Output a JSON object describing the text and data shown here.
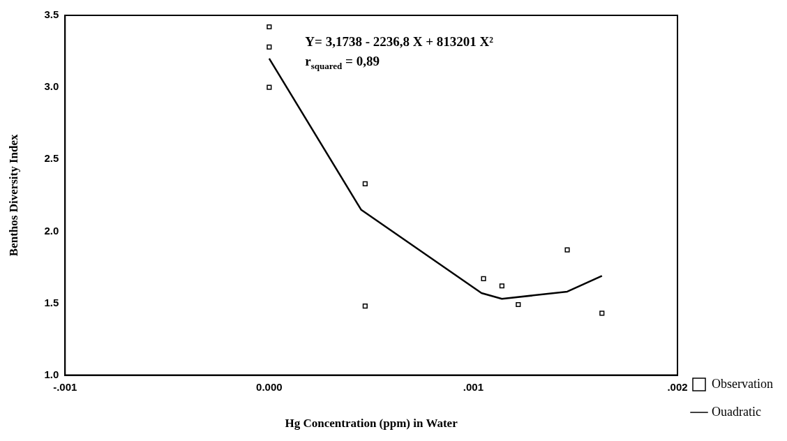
{
  "chart_data": {
    "type": "scatter",
    "xlabel": "Hg Concentration (ppm) in Water",
    "ylabel": "Benthos Diversity Index",
    "xlim": [
      -0.001,
      0.002
    ],
    "xticks": [
      {
        "value": -0.001,
        "label": "-.001"
      },
      {
        "value": 0,
        "label": "0.000"
      },
      {
        "value": 0.001,
        "label": ".001"
      },
      {
        "value": 0.002,
        "label": ".002"
      }
    ],
    "ylim": [
      1.0,
      3.5
    ],
    "yticks": [
      {
        "value": 1.0,
        "label": "1.0"
      },
      {
        "value": 1.5,
        "label": "1.5"
      },
      {
        "value": 2.0,
        "label": "2.0"
      },
      {
        "value": 2.5,
        "label": "2.5"
      },
      {
        "value": 3.0,
        "label": "3.0"
      },
      {
        "value": 3.5,
        "label": "3.5"
      }
    ],
    "grid": false,
    "legend": "bottom right",
    "annotations": [
      "Y= 3,1738 - 2236,8 X + 813201 X²",
      "r$_{squared}$ = 0,89"
    ],
    "series": [
      {
        "name": "Observation",
        "type": "scatter",
        "marker": "square",
        "color": "#000000",
        "x": [
          0,
          0,
          0,
          0.00047,
          0.00047,
          0.00105,
          0.00114,
          0.00122,
          0.00146,
          0.00163
        ],
        "values": [
          3.42,
          3.28,
          3.0,
          2.33,
          1.48,
          1.67,
          1.62,
          1.49,
          1.87,
          1.43
        ]
      },
      {
        "name": "Ouadratic",
        "type": "line",
        "marker": "none",
        "color": "#000000",
        "x": [
          0,
          0.00045,
          0.00104,
          0.00114,
          0.00146,
          0.00163
        ],
        "values": [
          3.2,
          2.15,
          1.57,
          1.53,
          1.58,
          1.69
        ]
      }
    ]
  }
}
